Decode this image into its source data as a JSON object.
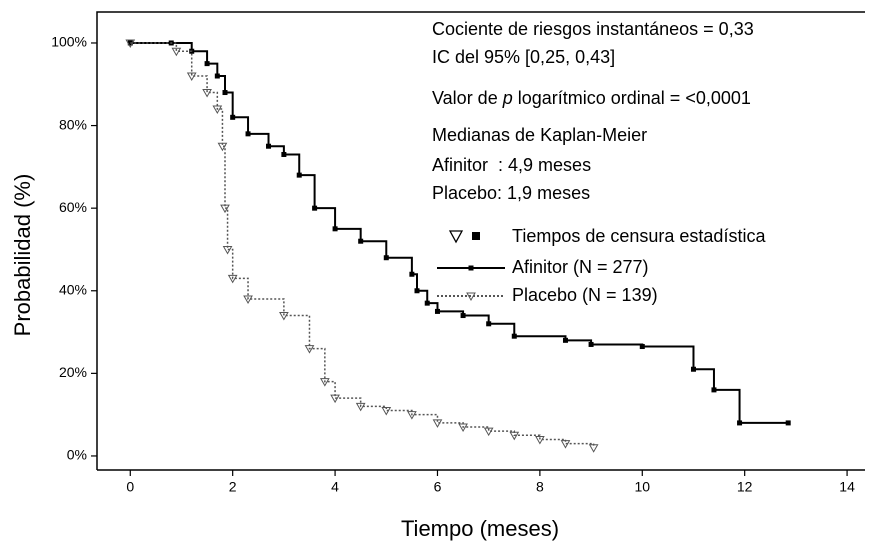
{
  "chart_data": {
    "type": "step",
    "x_label": "Tiempo (meses)",
    "y_label": "Probabilidad (%)",
    "xlim": [
      -0.65,
      14.35
    ],
    "ylim": [
      -3.4,
      107.5
    ],
    "xticks": [
      0,
      2,
      4,
      6,
      8,
      10,
      12,
      14
    ],
    "yticks": [
      {
        "value": 0,
        "label": "0%"
      },
      {
        "value": 20,
        "label": "20%"
      },
      {
        "value": 40,
        "label": "40%"
      },
      {
        "value": 60,
        "label": "60%"
      },
      {
        "value": 80,
        "label": "80%"
      },
      {
        "value": 100,
        "label": "100%"
      }
    ],
    "annotations": [
      "Cociente de riesgos instantáneos = 0,33",
      "IC del 95% [0,25, 0,43]",
      "Medianas de Kaplan-Meier",
      "Afinitor  : 4,9 meses",
      "Placebo: 1,9 meses"
    ],
    "p_value_text": [
      "Valor de ",
      "p",
      " logarítmico ordinal = <0,0001"
    ],
    "censor_legend": "Tiempos de censura estadística",
    "series": [
      {
        "name": "Afinitor (N = 277)",
        "color": "#000000",
        "dash": false,
        "marker": "square",
        "x": [
          0,
          0.8,
          1.2,
          1.5,
          1.7,
          1.85,
          2.0,
          2.3,
          2.7,
          3.0,
          3.3,
          3.6,
          4.0,
          4.5,
          5.0,
          5.5,
          5.6,
          5.8,
          6.0,
          6.5,
          7.0,
          7.5,
          8.5,
          9.0,
          10.0,
          11.0,
          11.4,
          11.9,
          12.85
        ],
        "values": [
          100,
          100,
          98,
          95,
          92,
          88,
          82,
          78,
          75,
          73,
          68,
          60,
          55,
          52,
          48,
          44,
          40,
          37,
          35,
          34,
          32,
          29,
          28,
          27,
          26.5,
          21,
          16,
          8,
          8
        ]
      },
      {
        "name": "Placebo (N = 139)",
        "color": "#555555",
        "dash": true,
        "marker": "triangle",
        "x": [
          0,
          0.9,
          1.2,
          1.5,
          1.7,
          1.8,
          1.85,
          1.9,
          2.0,
          2.3,
          3.0,
          3.5,
          3.8,
          4.0,
          4.5,
          5.0,
          5.5,
          6.0,
          6.5,
          7.0,
          7.5,
          8.0,
          8.5,
          9.05
        ],
        "values": [
          100,
          98,
          92,
          88,
          84,
          75,
          60,
          50,
          43,
          38,
          34,
          26,
          18,
          14,
          12,
          11,
          10,
          8,
          7,
          6,
          5,
          4,
          3,
          2
        ]
      }
    ]
  }
}
